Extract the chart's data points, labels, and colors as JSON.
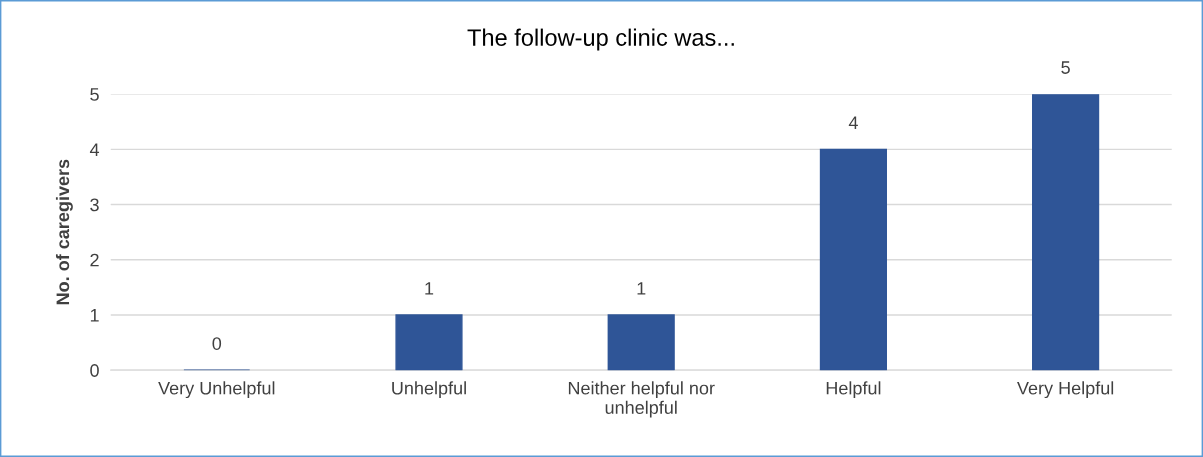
{
  "chart_data": {
    "type": "bar",
    "title": "The follow-up clinic was...",
    "ylabel": "No. of caregivers",
    "categories": [
      "Very Unhelpful",
      "Unhelpful",
      "Neither helpful nor unhelpful",
      "Helpful",
      "Very Helpful"
    ],
    "values": [
      0,
      1,
      1,
      4,
      5
    ],
    "color": "#2f5597",
    "ylim": [
      0,
      5
    ],
    "yticks": [
      0,
      1,
      2,
      3,
      4,
      5
    ],
    "grid": "y",
    "data_labels": true
  }
}
